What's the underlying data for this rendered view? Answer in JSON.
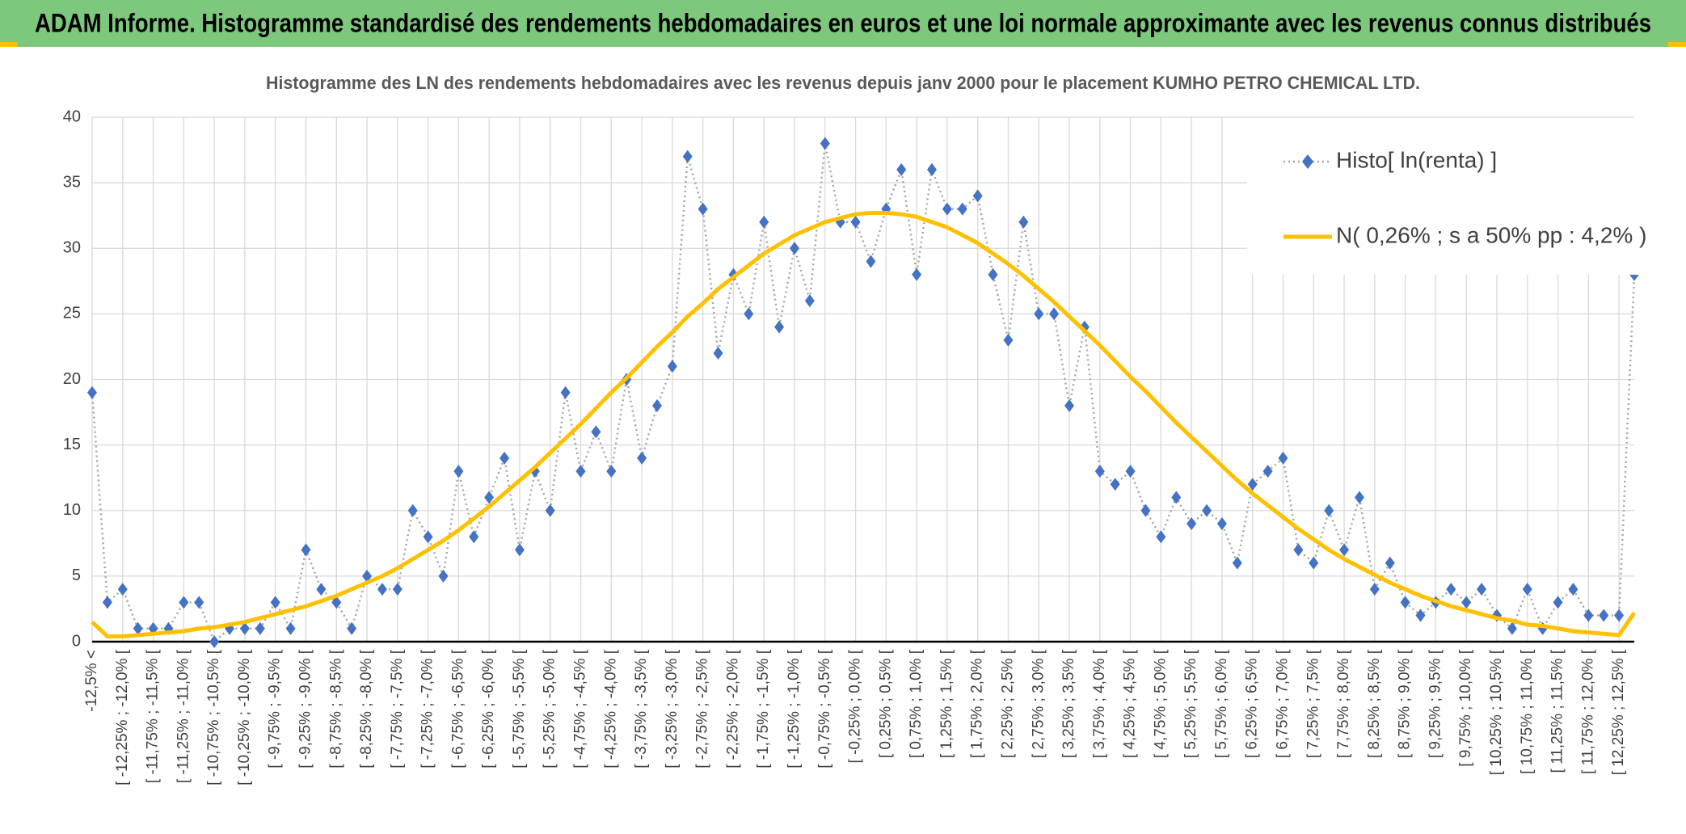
{
  "chart_data": {
    "type": "line",
    "title": "ADAM Informe. Histogramme standardisé des rendements hebdomadaires en euros et une loi normale approximante avec les revenus connus distribués",
    "subtitle": "Histogramme des LN des rendements hebdomadaires avec les revenus depuis janv 2000 pour le placement KUMHO PETRO CHEMICAL LTD.",
    "categories": [
      "-12,5% <",
      null,
      "[ -12,25% ; -12,0% [",
      null,
      "[ -11,75% ; -11,5% [",
      null,
      "[ -11,25% ; -11,0% [",
      null,
      "[ -10,75% ; -10,5% [",
      null,
      "[ -10,25% ; -10,0% [",
      null,
      "[ -9,75% ; -9,5% [",
      null,
      "[ -9,25% ; -9,0% [",
      null,
      "[ -8,75% ; -8,5% [",
      null,
      "[ -8,25% ; -8,0% [",
      null,
      "[ -7,75% ; -7,5% [",
      null,
      "[ -7,25% ; -7,0% [",
      null,
      "[ -6,75% ; -6,5% [",
      null,
      "[ -6,25% ; -6,0% [",
      null,
      "[ -5,75% ; -5,5% [",
      null,
      "[ -5,25% ; -5,0% [",
      null,
      "[ -4,75% ; -4,5% [",
      null,
      "[ -4,25% ; -4,0% [",
      null,
      "[ -3,75% ; -3,5% [",
      null,
      "[ -3,25% ; -3,0% [",
      null,
      "[ -2,75% ; -2,5% [",
      null,
      "[ -2,25% ; -2,0% [",
      null,
      "[ -1,75% ; -1,5% [",
      null,
      "[ -1,25% ; -1,0% [",
      null,
      "[ -0,75% ; -0,5% [",
      null,
      "[ -0,25% ; 0,0% [",
      null,
      "[ 0,25% ; 0,5% [",
      null,
      "[ 0,75% ; 1,0% [",
      null,
      "[ 1,25% ; 1,5% [",
      null,
      "[ 1,75% ; 2,0% [",
      null,
      "[ 2,25% ; 2,5% [",
      null,
      "[ 2,75% ; 3,0% [",
      null,
      "[ 3,25% ; 3,5% [",
      null,
      "[ 3,75% ; 4,0% [",
      null,
      "[ 4,25% ; 4,5% [",
      null,
      "[ 4,75% ; 5,0% [",
      null,
      "[ 5,25% ; 5,5% [",
      null,
      "[ 5,75% ; 6,0% [",
      null,
      "[ 6,25% ; 6,5% [",
      null,
      "[ 6,75% ; 7,0% [",
      null,
      "[ 7,25% ; 7,5% [",
      null,
      "[ 7,75% ; 8,0% [",
      null,
      "[ 8,25% ; 8,5% [",
      null,
      "[ 8,75% ; 9,0% [",
      null,
      "[ 9,25% ; 9,5% [",
      null,
      "[ 9,75% ; 10,0% [",
      null,
      "[ 10,25% ; 10,5% [",
      null,
      "[ 10,75% ; 11,0% [",
      null,
      "[ 11,25% ; 11,5% [",
      null,
      "[ 11,75% ; 12,0% [",
      null,
      "[ 12,25% ; 12,5% [",
      null
    ],
    "series": [
      {
        "name": "Histo[ ln(renta) ]",
        "color": "#4472c4",
        "line_color": "#a6a6a6",
        "line_style": "dotted",
        "marker": "diamond",
        "values": [
          19,
          3,
          4,
          1,
          1,
          1,
          3,
          3,
          0,
          1,
          1,
          1,
          3,
          1,
          7,
          4,
          3,
          1,
          5,
          4,
          4,
          10,
          8,
          5,
          13,
          8,
          11,
          14,
          7,
          13,
          10,
          19,
          13,
          16,
          13,
          20,
          14,
          18,
          21,
          37,
          33,
          22,
          28,
          25,
          32,
          24,
          30,
          26,
          38,
          32,
          32,
          29,
          33,
          36,
          28,
          36,
          33,
          33,
          34,
          28,
          23,
          32,
          25,
          25,
          18,
          24,
          13,
          12,
          13,
          10,
          8,
          11,
          9,
          10,
          9,
          6,
          12,
          13,
          14,
          7,
          6,
          10,
          7,
          11,
          4,
          6,
          3,
          2,
          3,
          4,
          3,
          4,
          2,
          1,
          4,
          1,
          3,
          4,
          2,
          2,
          2,
          28
        ]
      },
      {
        "name": "N( 0,26% ; s a 50% pp : 4,2% )",
        "color": "#ffc000",
        "line_style": "solid",
        "marker": "none",
        "values": [
          1.5,
          0.4,
          0.4,
          0.5,
          0.6,
          0.7,
          0.8,
          1.0,
          1.1,
          1.3,
          1.5,
          1.8,
          2.1,
          2.4,
          2.7,
          3.1,
          3.5,
          4.0,
          4.5,
          5.0,
          5.6,
          6.3,
          7.0,
          7.7,
          8.5,
          9.4,
          10.3,
          11.3,
          12.3,
          13.3,
          14.4,
          15.5,
          16.6,
          17.8,
          19.0,
          20.1,
          21.3,
          22.5,
          23.6,
          24.8,
          25.8,
          26.9,
          27.8,
          28.7,
          29.6,
          30.3,
          31.0,
          31.5,
          32.0,
          32.3,
          32.6,
          32.7,
          32.7,
          32.6,
          32.4,
          32.0,
          31.6,
          31.0,
          30.4,
          29.6,
          28.8,
          27.9,
          26.9,
          25.9,
          24.8,
          23.7,
          22.6,
          21.4,
          20.2,
          19.1,
          17.9,
          16.7,
          15.6,
          14.5,
          13.4,
          12.3,
          11.3,
          10.4,
          9.5,
          8.6,
          7.8,
          7.0,
          6.3,
          5.7,
          5.1,
          4.5,
          4.0,
          3.5,
          3.1,
          2.7,
          2.4,
          2.1,
          1.8,
          1.6,
          1.3,
          1.2,
          1.0,
          0.8,
          0.7,
          0.6,
          0.5,
          2.2
        ]
      }
    ],
    "ylim": [
      0,
      40
    ],
    "yticks": [
      0,
      5,
      10,
      15,
      20,
      25,
      30,
      35,
      40
    ],
    "grid": true,
    "legend": "upper right"
  }
}
